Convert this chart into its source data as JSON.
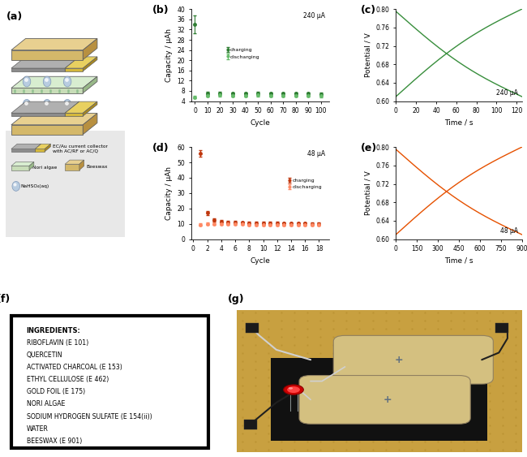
{
  "panel_b": {
    "cycle_main": [
      0,
      10,
      20,
      30,
      40,
      50,
      60,
      70,
      80,
      90,
      100
    ],
    "charging_main": [
      34.0,
      7.0,
      7.2,
      7.0,
      7.0,
      7.1,
      7.0,
      7.0,
      7.0,
      7.0,
      6.8
    ],
    "discharging_main": [
      5.5,
      6.2,
      6.3,
      6.2,
      6.2,
      6.3,
      6.2,
      6.2,
      6.2,
      6.2,
      6.0
    ],
    "charging_err": [
      3.5,
      0.6,
      0.5,
      0.5,
      0.5,
      0.5,
      0.5,
      0.5,
      0.5,
      0.5,
      0.5
    ],
    "discharging_err": [
      0.5,
      0.5,
      0.5,
      0.5,
      0.5,
      0.5,
      0.5,
      0.5,
      0.5,
      0.5,
      0.5
    ],
    "ylabel": "Capacity / µAh",
    "xlabel": "Cycle",
    "ylim": [
      4,
      40
    ],
    "yticks": [
      4,
      8,
      12,
      16,
      20,
      24,
      28,
      32,
      36,
      40
    ],
    "xticks": [
      0,
      10,
      20,
      30,
      40,
      50,
      60,
      70,
      80,
      90,
      100
    ],
    "label": "240 µA",
    "charging_color": "#2e7d32",
    "discharging_color": "#66bb6a"
  },
  "panel_c": {
    "ylabel": "Potential / V",
    "xlabel": "Time / s",
    "ylim": [
      0.6,
      0.8
    ],
    "xlim": [
      0,
      125
    ],
    "yticks": [
      0.6,
      0.64,
      0.68,
      0.72,
      0.76,
      0.8
    ],
    "xticks": [
      0,
      20,
      40,
      60,
      80,
      100,
      120
    ],
    "label": "240 µA",
    "line_color": "#388e3c"
  },
  "panel_d": {
    "cycle_main": [
      1,
      2,
      3,
      4,
      5,
      6,
      7,
      8,
      9,
      10,
      11,
      12,
      13,
      14,
      15,
      16,
      17,
      18
    ],
    "charging_main": [
      56.0,
      17.0,
      12.5,
      11.5,
      11.0,
      11.0,
      10.8,
      10.5,
      10.5,
      10.5,
      10.5,
      10.5,
      10.2,
      10.2,
      10.2,
      10.2,
      10.0,
      10.0
    ],
    "discharging_main": [
      9.5,
      10.0,
      10.0,
      9.8,
      9.8,
      9.8,
      9.8,
      9.5,
      9.5,
      9.5,
      9.5,
      9.5,
      9.3,
      9.3,
      9.3,
      9.3,
      9.2,
      9.2
    ],
    "charging_err": [
      2.0,
      1.5,
      1.0,
      0.8,
      0.8,
      0.8,
      0.7,
      0.7,
      0.7,
      0.7,
      0.7,
      0.7,
      0.7,
      0.7,
      0.7,
      0.7,
      0.7,
      0.7
    ],
    "discharging_err": [
      0.7,
      0.7,
      0.7,
      0.7,
      0.7,
      0.7,
      0.7,
      0.7,
      0.7,
      0.7,
      0.7,
      0.7,
      0.7,
      0.7,
      0.7,
      0.7,
      0.7,
      0.7
    ],
    "ylabel": "Capacity / µAh",
    "xlabel": "Cycle",
    "ylim": [
      0,
      60
    ],
    "yticks": [
      0,
      10,
      20,
      30,
      40,
      50,
      60
    ],
    "xticks": [
      0,
      2,
      4,
      6,
      8,
      10,
      12,
      14,
      16,
      18
    ],
    "label": "48 µA",
    "charging_color": "#bf360c",
    "discharging_color": "#ff8a65"
  },
  "panel_e": {
    "ylabel": "Potential / V",
    "xlabel": "Time / s",
    "ylim": [
      0.6,
      0.8
    ],
    "xlim": [
      0,
      900
    ],
    "yticks": [
      0.6,
      0.64,
      0.68,
      0.72,
      0.76,
      0.8
    ],
    "xticks": [
      0,
      150,
      300,
      450,
      600,
      750,
      900
    ],
    "label": "48 µA",
    "line_color": "#e65100"
  },
  "panel_f_ingredients": [
    "INGREDIENTS:",
    "RIBOFLAVIN (E 101)",
    "QUERCETIN",
    "ACTIVATED CHARCOAL (E 153)",
    "ETHYL CELLULOSE (E 462)",
    "GOLD FOIL (E 175)",
    "NORI ALGAE",
    "SODIUM HYDROGEN SULFATE (E 154(ii))",
    "WATER",
    "BEESWAX (E 901)"
  ],
  "beeswax_color": "#d4b86a",
  "beeswax_top_color": "#e8d090",
  "beeswax_side_color": "#b89040",
  "nori_color": "#c8ddb8",
  "nori_top_color": "#d8edd0",
  "nori_side_color": "#98b888",
  "collector_gray": "#8c8c8c",
  "collector_yellow": "#d4b83c",
  "electrolyte_color": "#b8cce0",
  "electrolyte_edge": "#8098b8",
  "background_color": "white",
  "panel_bg": "#e8e8e8"
}
